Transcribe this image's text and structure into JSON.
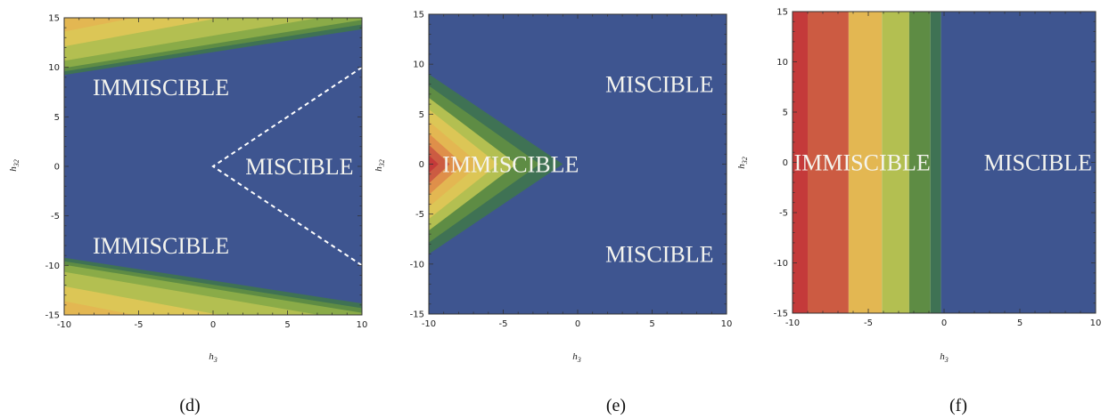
{
  "palette": [
    "#c43a3a",
    "#cc5b42",
    "#df8f4a",
    "#e3b752",
    "#dcc656",
    "#b3bf51",
    "#8aab48",
    "#5e8c44",
    "#3f7254",
    "#3e5590"
  ],
  "dashed_color": "#ffffff",
  "chart_data": [
    {
      "type": "heatmap",
      "panel": "(d)",
      "xlabel": "h3",
      "ylabel": "h32",
      "xlim": [
        -10,
        10
      ],
      "ylim": [
        -15,
        15
      ],
      "xticks": [
        "-10",
        "-5",
        "0",
        "5",
        "10"
      ],
      "yticks": [
        "15",
        "10",
        "5",
        "0",
        "-5",
        "-10",
        "-15"
      ],
      "contour_levels": [
        12,
        10,
        8,
        6,
        4,
        2,
        1,
        0.5,
        0
      ],
      "boundary": "dashed line |h32| = h3, apex at (0, 0)",
      "labels": [
        {
          "text": "IMMISCIBLE",
          "x": -3.5,
          "y": 8
        },
        {
          "text": "MISCIBLE",
          "x": 5.8,
          "y": 0
        },
        {
          "text": "IMMISCIBLE",
          "x": -3.5,
          "y": -8
        }
      ]
    },
    {
      "type": "heatmap",
      "panel": "(e)",
      "xlabel": "h3",
      "ylabel": "h32",
      "xlim": [
        -10,
        10
      ],
      "ylim": [
        -15,
        15
      ],
      "xticks": [
        "-10",
        "-5",
        "0",
        "5",
        "10"
      ],
      "yticks": [
        "15",
        "10",
        "5",
        "0",
        "-5",
        "-10",
        "-15"
      ],
      "contour_levels": [
        9,
        7,
        5,
        3.6,
        2.2,
        1.1,
        0.4,
        0
      ],
      "labels": [
        {
          "text": "MISCIBLE",
          "x": 5.5,
          "y": 8
        },
        {
          "text": "IMMISCIBLE",
          "x": -4.5,
          "y": 0
        },
        {
          "text": "MISCIBLE",
          "x": 5.5,
          "y": -9
        }
      ]
    },
    {
      "type": "heatmap",
      "panel": "(f)",
      "xlabel": "h3",
      "ylabel": "h32",
      "xlim": [
        -10,
        10
      ],
      "ylim": [
        -15,
        15
      ],
      "xticks": [
        "-10",
        "-5",
        "0",
        "5",
        "10"
      ],
      "yticks": [
        "15",
        "10",
        "5",
        "0",
        "-5",
        "-10",
        "-15"
      ],
      "bands": [
        {
          "from": -10,
          "to": -9
        },
        {
          "from": -9,
          "to": -6.3
        },
        {
          "from": -6.3,
          "to": -4.1
        },
        {
          "from": -4.1,
          "to": -2.3
        },
        {
          "from": -2.3,
          "to": -0.9
        },
        {
          "from": -0.9,
          "to": -0.2
        },
        {
          "from": -0.2,
          "to": 10
        }
      ],
      "band_colors": [
        "#c43a3a",
        "#cc5b42",
        "#e3b752",
        "#b3bf51",
        "#5e8c44",
        "#3f7254",
        "#3e5590"
      ],
      "labels": [
        {
          "text": "IMMISCIBLE",
          "x": -5.4,
          "y": 0
        },
        {
          "text": "MISCIBLE",
          "x": 6.2,
          "y": 0
        }
      ]
    }
  ],
  "captions": [
    "(d)",
    "(e)",
    "(f)"
  ]
}
